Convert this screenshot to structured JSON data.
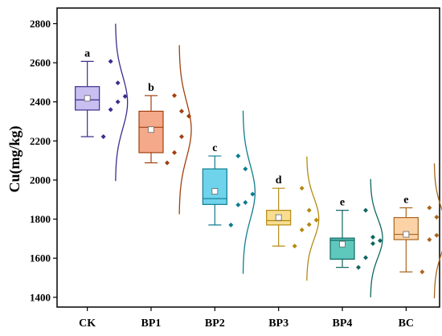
{
  "chart_data": {
    "type": "box",
    "ylabel": "Cu(mg/kg)",
    "ylim": [
      1350,
      2880
    ],
    "yticks": [
      1400,
      1600,
      1800,
      2000,
      2200,
      2400,
      2600,
      2800
    ],
    "categories": [
      "CK",
      "BP1",
      "BP2",
      "BP3",
      "BP4",
      "BC"
    ],
    "groups": [
      {
        "name": "CK",
        "color": "#3d2d8c",
        "fill": "#c9bff0",
        "q1": 2358,
        "median": 2410,
        "q3": 2478,
        "mean": 2418,
        "whisker_low": 2222,
        "whisker_high": 2607,
        "sig": "a",
        "points": [
          2607,
          2497,
          2428,
          2400,
          2360,
          2222
        ],
        "curve_range": [
          1995,
          2800
        ]
      },
      {
        "name": "BP1",
        "color": "#a0400e",
        "fill": "#f4a98a",
        "q1": 2140,
        "median": 2270,
        "q3": 2352,
        "mean": 2258,
        "whisker_low": 2088,
        "whisker_high": 2432,
        "sig": "b",
        "points": [
          2432,
          2352,
          2327,
          2222,
          2140,
          2088
        ],
        "curve_range": [
          1825,
          2690
        ]
      },
      {
        "name": "BP2",
        "color": "#0f7c8e",
        "fill": "#6fd3ec",
        "q1": 1875,
        "median": 1905,
        "q3": 2057,
        "mean": 1942,
        "whisker_low": 1770,
        "whisker_high": 2123,
        "sig": "c",
        "points": [
          2123,
          2057,
          1928,
          1885,
          1873,
          1770
        ],
        "curve_range": [
          1520,
          2355
        ]
      },
      {
        "name": "BP3",
        "color": "#b58a10",
        "fill": "#f7dd90",
        "q1": 1770,
        "median": 1792,
        "q3": 1845,
        "mean": 1808,
        "whisker_low": 1662,
        "whisker_high": 1958,
        "sig": "d",
        "points": [
          1958,
          1845,
          1795,
          1772,
          1745,
          1662
        ],
        "curve_range": [
          1485,
          2120
        ]
      },
      {
        "name": "BP4",
        "color": "#0f6660",
        "fill": "#5ec8bc",
        "q1": 1595,
        "median": 1692,
        "q3": 1703,
        "mean": 1672,
        "whisker_low": 1553,
        "whisker_high": 1845,
        "sig": "e",
        "points": [
          1845,
          1708,
          1690,
          1675,
          1603,
          1553
        ],
        "curve_range": [
          1400,
          2005
        ]
      },
      {
        "name": "BC",
        "color": "#a8661e",
        "fill": "#fbd3a7",
        "q1": 1695,
        "median": 1722,
        "q3": 1808,
        "mean": 1722,
        "whisker_low": 1530,
        "whisker_high": 1858,
        "sig": "e",
        "points": [
          1858,
          1810,
          1733,
          1717,
          1695,
          1530
        ],
        "curve_range": [
          1395,
          2085
        ]
      }
    ]
  }
}
